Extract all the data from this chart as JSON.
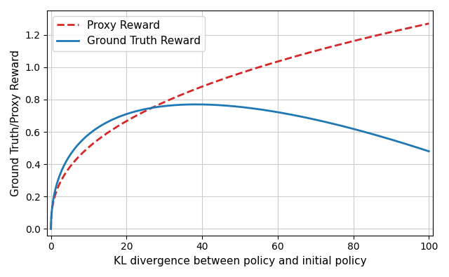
{
  "xlabel": "KL divergence between policy and initial policy",
  "ylabel": "Ground Truth/Proxy Reward",
  "xlim": [
    -1,
    101
  ],
  "ylim": [
    -0.04,
    1.35
  ],
  "proxy_color": "#d62728",
  "truth_color": "#1f77b4",
  "proxy_label": "Proxy Reward",
  "truth_label": "Ground Truth Reward",
  "proxy_linestyle": "--",
  "truth_linestyle": "-",
  "linewidth": 2.0,
  "grid": true,
  "grid_color": "#cccccc",
  "proxy_a": 0.4,
  "proxy_b": 0.08,
  "truth_a": 0.196,
  "truth_b": 0.01298,
  "n_points": 2000,
  "yticks": [
    0.0,
    0.2,
    0.4,
    0.6,
    0.8,
    1.0,
    1.2
  ],
  "xticks": [
    0,
    20,
    40,
    60,
    80,
    100
  ]
}
